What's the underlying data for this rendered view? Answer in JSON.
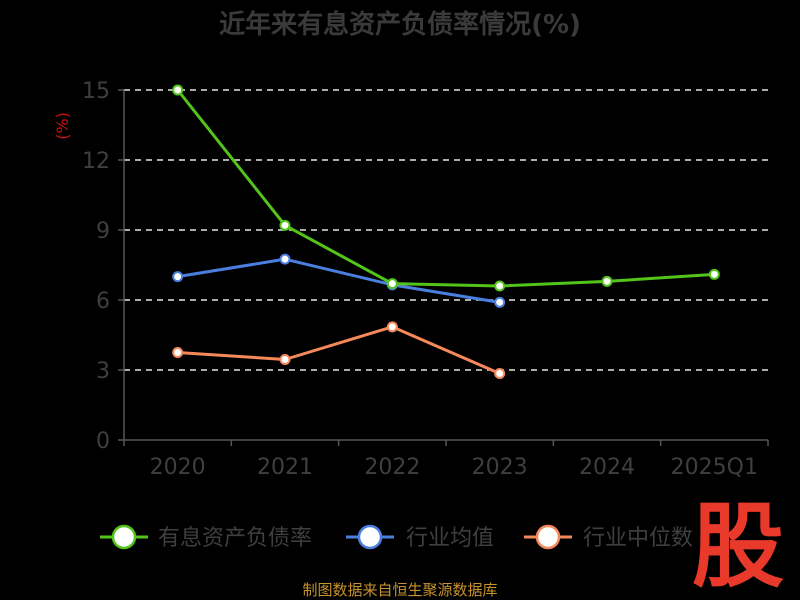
{
  "chart_data": {
    "type": "line",
    "title": "近年来有息资产负债率情况(%)",
    "ylabel": "(%)",
    "xlabel": "",
    "categories": [
      "2020",
      "2021",
      "2022",
      "2023",
      "2024",
      "2025Q1"
    ],
    "ylim": [
      0,
      15
    ],
    "yticks": [
      "0",
      "3",
      "6",
      "9",
      "12",
      "15"
    ],
    "grid": true,
    "legend_position": "bottom",
    "series": [
      {
        "name": "有息资产负债率",
        "color": "#52c41a",
        "values": [
          15.0,
          9.2,
          6.7,
          6.6,
          6.8,
          7.1
        ]
      },
      {
        "name": "行业均值",
        "color": "#4a7fe0",
        "values": [
          7.0,
          7.75,
          6.65,
          5.9,
          null,
          null
        ]
      },
      {
        "name": "行业中位数",
        "color": "#f5895a",
        "values": [
          3.75,
          3.45,
          4.85,
          2.85,
          null,
          null
        ]
      }
    ]
  },
  "source": "制图数据来自恒生聚源数据库",
  "logo_text": "股"
}
